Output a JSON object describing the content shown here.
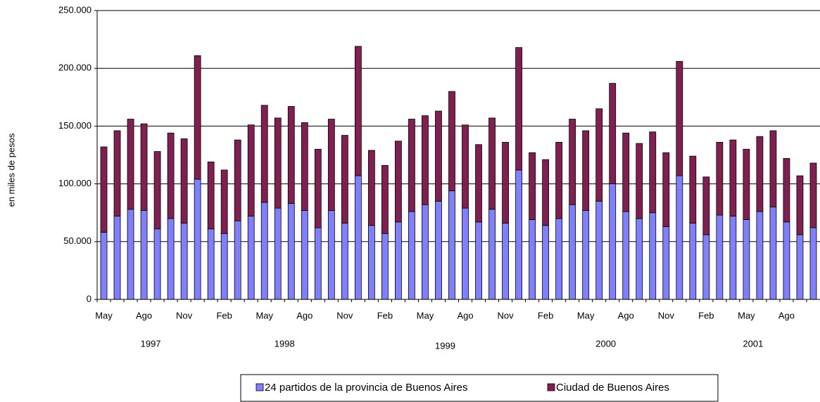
{
  "chart_data": {
    "type": "stacked_bar",
    "y_label": "en miles de pesos",
    "categories": [
      "May",
      null,
      null,
      "Ago",
      null,
      null,
      "Nov",
      null,
      null,
      "Feb",
      null,
      null,
      "May",
      null,
      null,
      "Ago",
      null,
      null,
      "Nov",
      null,
      null,
      "Feb",
      null,
      null,
      "May",
      null,
      null,
      "Ago",
      null,
      null,
      "Nov",
      null,
      null,
      "Feb",
      null,
      null,
      "May",
      null,
      null,
      "Ago",
      null,
      null,
      "Nov",
      null,
      null,
      "Feb",
      null,
      null,
      "May",
      null,
      null,
      "Ago",
      null,
      null
    ],
    "years": [
      "1997",
      "1998",
      "1999",
      "2000",
      "2001"
    ],
    "series": [
      {
        "name": "24 partidos de la provincia de Buenos Aires",
        "color": "#8080ff",
        "values": [
          58000,
          72000,
          78000,
          77000,
          61000,
          70000,
          66000,
          104000,
          61000,
          57000,
          68000,
          72000,
          84000,
          79000,
          83000,
          77000,
          62000,
          77000,
          66000,
          107000,
          64000,
          57000,
          67000,
          76000,
          82000,
          85000,
          94000,
          79000,
          67000,
          78000,
          66000,
          112000,
          69000,
          64000,
          70000,
          82000,
          77000,
          85000,
          100000,
          76000,
          70000,
          75000,
          63000,
          107000,
          66000,
          56000,
          73000,
          72000,
          69000,
          76000,
          80000,
          67000,
          56000,
          62000
        ]
      },
      {
        "name": "Ciudad de Buenos Aires",
        "color": "#802050",
        "values": [
          74000,
          74000,
          78000,
          75000,
          67000,
          74000,
          73000,
          107000,
          58000,
          55000,
          70000,
          79000,
          84000,
          78000,
          84000,
          76000,
          68000,
          79000,
          76000,
          112000,
          65000,
          59000,
          70000,
          80000,
          77000,
          78000,
          86000,
          72000,
          67000,
          79000,
          70000,
          106000,
          58000,
          57000,
          66000,
          74000,
          69000,
          80000,
          87000,
          68000,
          65000,
          70000,
          64000,
          99000,
          58000,
          50000,
          63000,
          66000,
          61000,
          65000,
          66000,
          55000,
          51000,
          56000
        ]
      }
    ],
    "ylim": [
      0,
      250000
    ],
    "yticks": [
      0,
      {
        "value": 50000,
        "label": "50.000"
      },
      {
        "value": 100000,
        "label": "100.000"
      },
      {
        "value": 150000,
        "label": "150.000"
      },
      {
        "value": 200000,
        "label": "200.000"
      },
      {
        "value": 250000,
        "label": "250.000"
      }
    ],
    "grid": true
  }
}
